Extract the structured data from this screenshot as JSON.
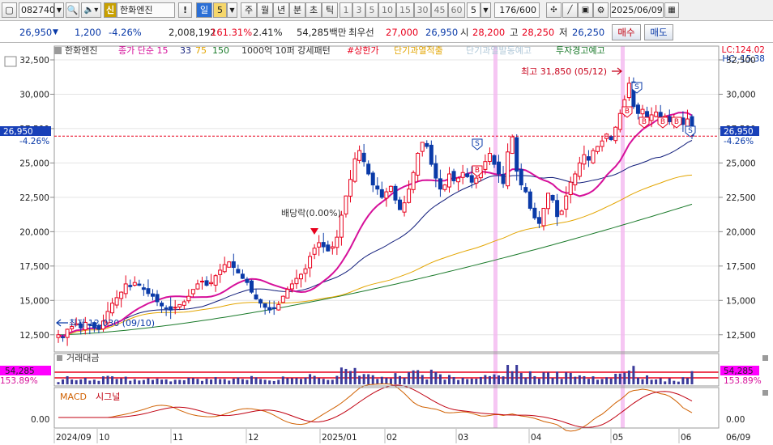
{
  "toolbar": {
    "code": "082740",
    "name": "한화엔진",
    "badge": "신",
    "alert": "!",
    "period_day": "일",
    "period_num": "5",
    "periods": [
      "주",
      "월",
      "년",
      "분",
      "초",
      "틱"
    ],
    "nums": [
      "1",
      "3",
      "5",
      "10",
      "15",
      "30",
      "45",
      "60"
    ],
    "n_value": "5",
    "count": "176/600",
    "date": "2025/06/09"
  },
  "quote": {
    "price": "26,950",
    "change": "1,200",
    "change_pct": "-4.26%",
    "volume": "2,008,192",
    "vol_ratio": "161.31%",
    "turnover": "2.41%",
    "amount": "54,285백만",
    "bid_label": "최우선",
    "bid1": "27,000",
    "bid2": "26,950",
    "open_label": "시",
    "open": "28,200",
    "high_label": "고",
    "high": "28,250",
    "low_label": "저",
    "low": "26,250",
    "buy_btn": "매수",
    "sell_btn": "매도"
  },
  "legend": {
    "name": "한화엔진",
    "ma_label": "종가 단순 15",
    "ma33": "33",
    "ma75": "75",
    "ma150": "150",
    "ind1": "1000억 10퍼 강세패턴",
    "ind2": "#상한가",
    "ind3": "단기과열적출",
    "ind4": "단기과열발동예고",
    "ind5": "투자경고예고"
  },
  "right_info": {
    "lc": "LC:124.02",
    "hc": "HC:-15.38"
  },
  "annotations": {
    "high": "최고 31,850 (05/12)",
    "low": "최저 12,030 (09/10)",
    "dividend": "배당락(0.00%)"
  },
  "price_tag": {
    "value": "26,950",
    "pct": "-4.26%"
  },
  "volume_panel": {
    "title": "거래대금",
    "value": "54,285",
    "pct": "153.89%"
  },
  "macd_panel": {
    "title": "MACD",
    "signal": "시그널",
    "zero": "0.00"
  },
  "colors": {
    "up": "#e8001c",
    "down": "#0a3aa8",
    "ma15": "#d6109a",
    "ma33": "#101c7a",
    "ma75": "#e3a500",
    "ma150": "#1a7a2a"
  },
  "chart_data": {
    "type": "candlestick",
    "y_ticks": [
      "32,500",
      "30,000",
      "27,500",
      "25,000",
      "22,500",
      "20,000",
      "17,500",
      "15,000",
      "12,500"
    ],
    "y_range": [
      11250,
      33500
    ],
    "x_labels": [
      "2024/09",
      "10",
      "11",
      "12",
      "2025/01",
      "02",
      "03",
      "04",
      "05",
      "06",
      "06/09"
    ],
    "current_price": 26950,
    "high": {
      "value": 31850,
      "date": "05/12"
    },
    "low": {
      "value": 12030,
      "date": "09/10"
    },
    "close_series": [
      12500,
      12300,
      12900,
      13100,
      13300,
      13000,
      13400,
      13200,
      13000,
      12900,
      13500,
      14200,
      14800,
      15200,
      15600,
      16200,
      16000,
      16300,
      16100,
      15800,
      15500,
      15300,
      14900,
      14600,
      14400,
      14300,
      14500,
      14700,
      14900,
      15300,
      15800,
      16200,
      16400,
      16100,
      16300,
      16800,
      17200,
      17600,
      17800,
      17400,
      17000,
      16600,
      16300,
      15600,
      15100,
      14800,
      14500,
      14300,
      14400,
      14700,
      15300,
      15800,
      16200,
      16600,
      16900,
      17300,
      18200,
      18800,
      19200,
      18900,
      18600,
      18900,
      19600,
      21200,
      22600,
      23800,
      25300,
      25900,
      25100,
      24200,
      23400,
      23100,
      22500,
      22900,
      23300,
      22300,
      21600,
      22100,
      23100,
      24300,
      25700,
      26500,
      26200,
      24900,
      23900,
      23100,
      23400,
      24200,
      23700,
      23900,
      24300,
      24000,
      23600,
      23900,
      24400,
      25100,
      25700,
      24900,
      24200,
      23500,
      25800,
      26900,
      24400,
      23400,
      22900,
      21700,
      21000,
      20600,
      21700,
      22800,
      22300,
      21100,
      21500,
      22600,
      23600,
      24200,
      25000,
      25600,
      25200,
      25900,
      26200,
      26600,
      27100,
      26700,
      27600,
      28600,
      29600,
      30800,
      29100,
      28600,
      28900,
      28200,
      28500,
      28700,
      28300,
      28400,
      28000,
      28200,
      28300,
      27800,
      28200,
      26950
    ],
    "ma150_start": 12500,
    "ma150_end": 22000,
    "volume_title": "거래대금",
    "macd_title": "MACD"
  }
}
